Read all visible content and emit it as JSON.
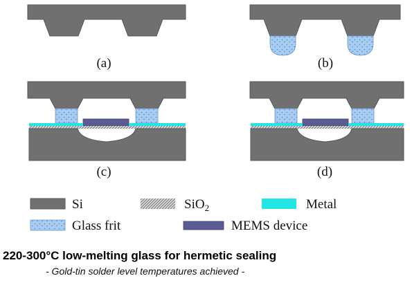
{
  "panels": {
    "a": {
      "label": "(a)"
    },
    "b": {
      "label": "(b)"
    },
    "c": {
      "label": "(c)"
    },
    "d": {
      "label": "(d)"
    }
  },
  "legend": {
    "si": {
      "label": "Si"
    },
    "sio2": {
      "label_main": "SiO",
      "label_sub": "2"
    },
    "metal": {
      "label": "Metal"
    },
    "glass_frit": {
      "label": "Glass frit"
    },
    "mems_device": {
      "label": "MEMS device"
    }
  },
  "colors": {
    "si": "#707070",
    "si_edge": "#555555",
    "metal": "#22e5e5",
    "glass_frit": "#a6ccf2",
    "glass_dots": "#5a86c4",
    "mems_device": "#5b5b93",
    "sio2_hatch": "#666666"
  },
  "headline": "220-300°C low-melting glass for hermetic sealing",
  "subline": "- Gold-tin solder level temperatures achieved -"
}
